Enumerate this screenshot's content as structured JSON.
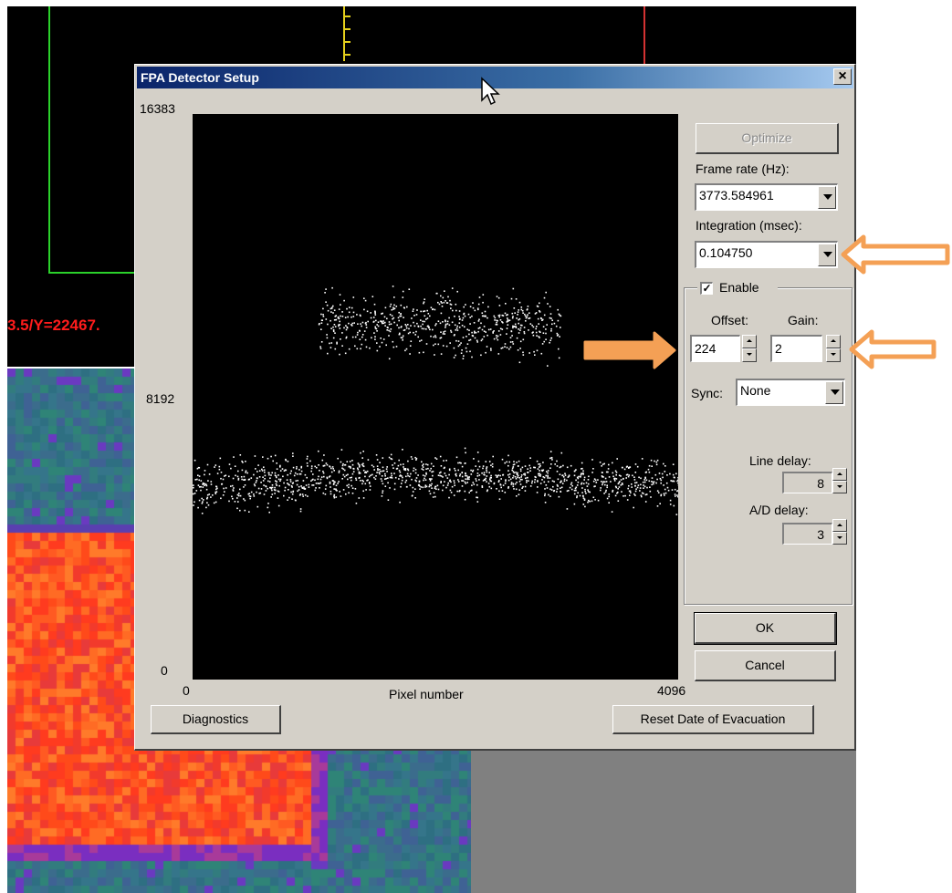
{
  "background": {
    "coord_text": "3.5/Y=22467.",
    "colors": {
      "green": "#2bd12b",
      "red": "#d43232",
      "yellow": "#e6d11c",
      "coord": "#ff1c1c"
    }
  },
  "dialog": {
    "title": "FPA Detector Setup",
    "close_icon": "×",
    "plot": {
      "y_max_label": "16383",
      "y_mid_label": "8192",
      "y_min_label": "0",
      "x_min_label": "0",
      "x_max_label": "4096",
      "x_label": "Pixel number"
    },
    "optimize_label": "Optimize",
    "frame_rate": {
      "label": "Frame rate (Hz):",
      "value": "3773.584961"
    },
    "integration": {
      "label": "Integration (msec):",
      "value": "0.104750"
    },
    "enable": {
      "label": "Enable",
      "checked": true,
      "check_glyph": "✓"
    },
    "offset": {
      "label": "Offset:",
      "value": "224"
    },
    "gain": {
      "label": "Gain:",
      "value": "2"
    },
    "sync": {
      "label": "Sync:",
      "value": "None"
    },
    "line_delay": {
      "label": "Line delay:",
      "value": "8"
    },
    "ad_delay": {
      "label": "A/D delay:",
      "value": "3"
    },
    "ok_label": "OK",
    "cancel_label": "Cancel",
    "diagnostics_label": "Diagnostics",
    "reset_label": "Reset Date of Evacuation"
  },
  "chart_data": {
    "type": "scatter",
    "xlabel": "Pixel number",
    "xlim": [
      0,
      4096
    ],
    "ylim": [
      0,
      16383
    ],
    "y_ticks": [
      0,
      8192,
      16383
    ],
    "x_ticks": [
      0,
      4096
    ],
    "series": [
      {
        "x_range": [
          0,
          950
        ],
        "y_center": 5700,
        "y_spread": 1000
      },
      {
        "x_range": [
          950,
          3150
        ],
        "y_center": 5900,
        "y_spread": 900
      },
      {
        "x_range": [
          1060,
          3100
        ],
        "y_center": 10300,
        "y_spread": 1300
      },
      {
        "x_range": [
          3150,
          4096
        ],
        "y_center": 5700,
        "y_spread": 1000
      }
    ],
    "grid": false
  },
  "annotations": {
    "arrow_color": "#f4a055"
  }
}
